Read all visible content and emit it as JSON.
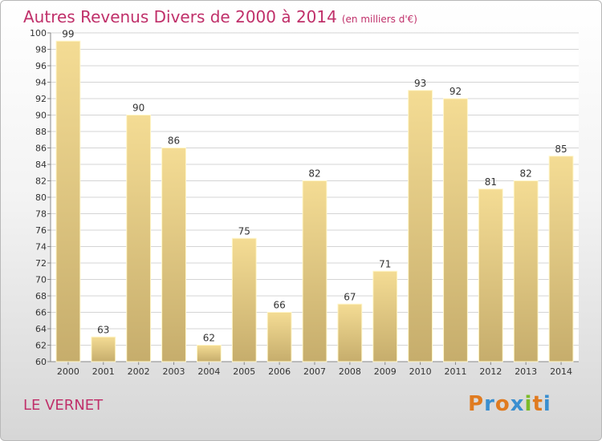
{
  "chart_data": {
    "type": "bar",
    "title": "Autres Revenus Divers de 2000 à 2014",
    "subtitle": "(en milliers d'€)",
    "categories": [
      "2000",
      "2001",
      "2002",
      "2003",
      "2004",
      "2005",
      "2006",
      "2007",
      "2008",
      "2009",
      "2010",
      "2011",
      "2012",
      "2013",
      "2014"
    ],
    "values": [
      99,
      63,
      90,
      86,
      62,
      75,
      66,
      82,
      67,
      71,
      93,
      92,
      81,
      82,
      85
    ],
    "ylim": [
      60,
      100
    ],
    "yticks": [
      60,
      62,
      64,
      66,
      68,
      70,
      72,
      74,
      76,
      78,
      80,
      82,
      84,
      86,
      88,
      90,
      92,
      94,
      96,
      98,
      100
    ],
    "grid": true,
    "bar_color": "#f0d88a"
  },
  "place": "LE VERNET",
  "logo": {
    "letters": [
      "P",
      "r",
      "o",
      "x",
      "i",
      "t",
      "i"
    ],
    "colors": [
      "#e07b20",
      "#3a8fd0",
      "#e07b20",
      "#3a8fd0",
      "#7cbb2a",
      "#e07b20",
      "#3a8fd0"
    ]
  }
}
